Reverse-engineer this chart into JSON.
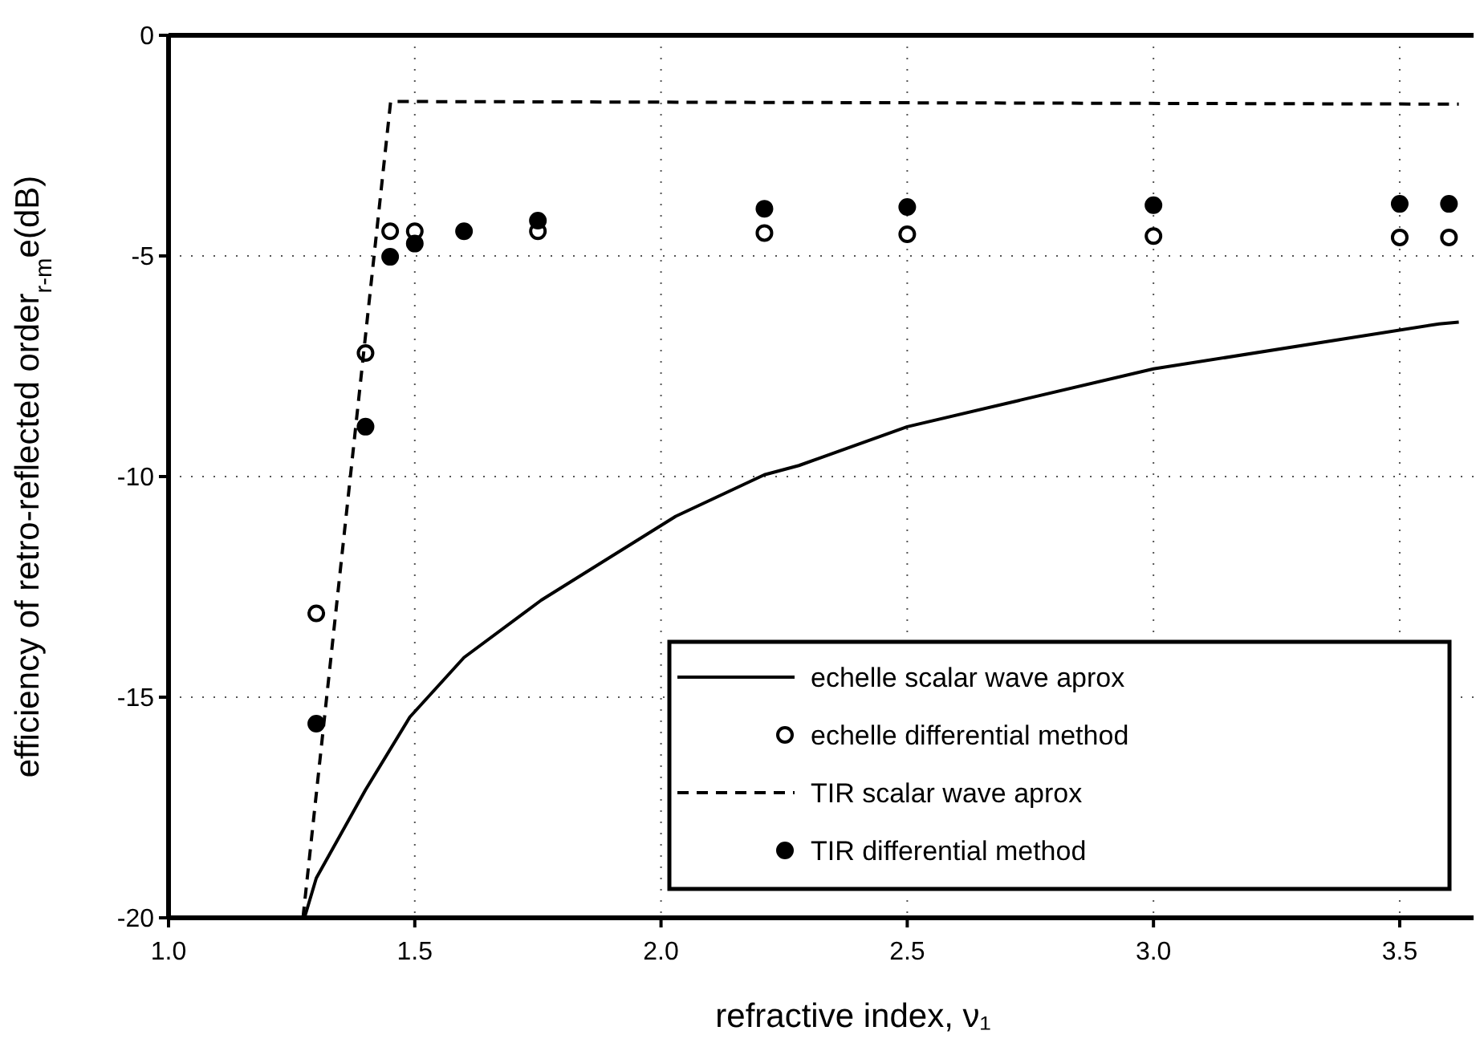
{
  "chart_data": {
    "type": "line",
    "xlabel": "refractive index, ν₁",
    "ylabel": "efficiency of retro-reflected order$_{r-m}$e(dB)",
    "xlim": [
      1.0,
      3.65
    ],
    "ylim": [
      -20,
      0
    ],
    "xticks": [
      {
        "value": 1.0,
        "label": "1.0"
      },
      {
        "value": 1.5,
        "label": "1.5"
      },
      {
        "value": 2.0,
        "label": "2.0"
      },
      {
        "value": 2.5,
        "label": "2.5"
      },
      {
        "value": 3.0,
        "label": "3.0"
      },
      {
        "value": 3.5,
        "label": "3.5"
      }
    ],
    "yticks": [
      -20,
      -15,
      -10,
      -5,
      0
    ],
    "grid": true,
    "legend": "bottom right",
    "series": [
      {
        "name": "echelle scalar wave aprox",
        "line_style": "solid",
        "color": "#000000",
        "x": [
          1.276,
          1.3,
          1.4,
          1.49,
          1.6,
          1.757,
          2.03,
          2.21,
          2.28,
          2.5,
          3.0,
          3.58,
          3.62
        ],
        "values": [
          -20,
          -19.1,
          -17.1,
          -15.45,
          -14.1,
          -12.8,
          -10.9,
          -9.96,
          -9.75,
          -8.87,
          -7.56,
          -6.54,
          -6.5
        ]
      },
      {
        "name": "echelle differential method",
        "type": "scatter",
        "marker": "circle-open",
        "color": "#000000",
        "x": [
          1.3,
          1.4,
          1.45,
          1.5,
          1.75,
          2.21,
          2.5,
          3.0,
          3.5,
          3.6
        ],
        "values": [
          -13.1,
          -7.2,
          -4.44,
          -4.44,
          -4.44,
          -4.48,
          -4.51,
          -4.55,
          -4.58,
          -4.58
        ]
      },
      {
        "name": "TIR scalar wave aprox",
        "line_style": "dashed",
        "color": "#000000",
        "x": [
          1.273,
          1.451,
          3.62
        ],
        "values": [
          -20,
          -1.5,
          -1.56
        ]
      },
      {
        "name": "TIR differential method",
        "type": "scatter",
        "marker": "circle",
        "color": "#000000",
        "x": [
          1.3,
          1.4,
          1.45,
          1.5,
          1.6,
          1.75,
          2.21,
          2.5,
          3.0,
          3.5,
          3.6
        ],
        "values": [
          -15.6,
          -8.87,
          -5.02,
          -4.72,
          -4.44,
          -4.2,
          -3.93,
          -3.89,
          -3.85,
          -3.82,
          -3.82
        ]
      }
    ]
  }
}
